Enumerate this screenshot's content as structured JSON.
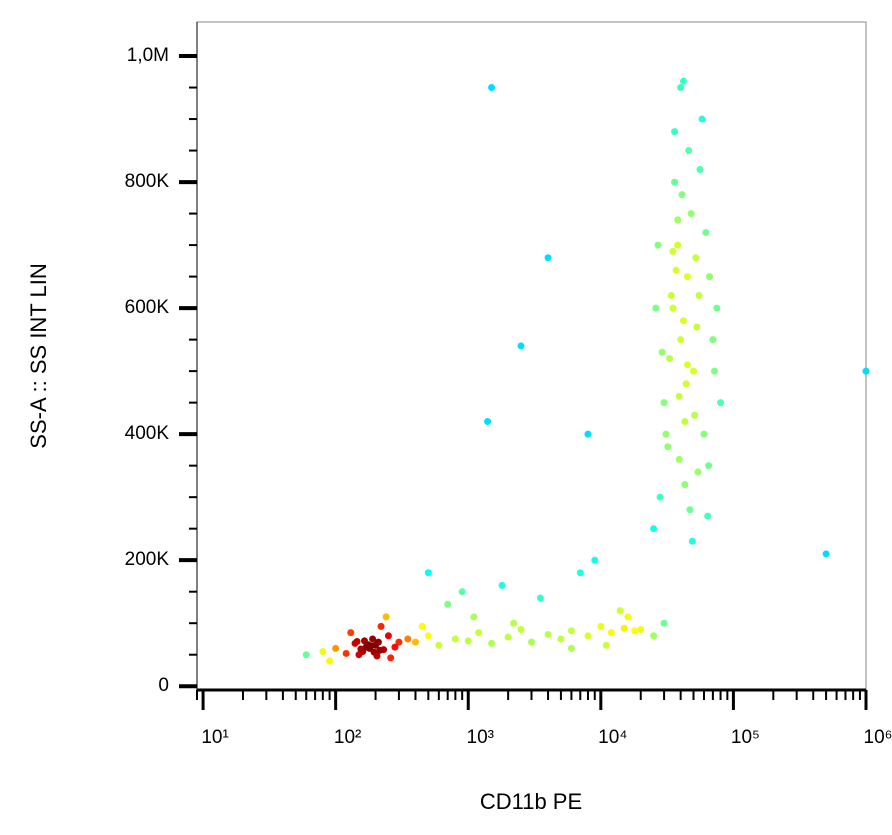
{
  "chart_data": {
    "type": "scatter",
    "x_label": "CD11b PE",
    "y_label": "SS-A :: SS INT LIN",
    "x_log": true,
    "xlim": [
      9,
      1000000
    ],
    "xticks": [
      {
        "value": 10,
        "label": "10¹"
      },
      {
        "value": 100,
        "label": "10²"
      },
      {
        "value": 1000,
        "label": "10³"
      },
      {
        "value": 10000,
        "label": "10⁴"
      },
      {
        "value": 100000,
        "label": "10⁵"
      },
      {
        "value": 1000000,
        "label": "10⁶"
      }
    ],
    "ylim": [
      -6000,
      1054000
    ],
    "yticks": [
      0,
      {
        "value": 200000,
        "label": "200K"
      },
      {
        "value": 400000,
        "label": "400K"
      },
      {
        "value": 600000,
        "label": "600K"
      },
      {
        "value": 800000,
        "label": "800K"
      },
      {
        "value": 1000000,
        "label": "1,0M"
      }
    ],
    "x": [
      180,
      160,
      200,
      210,
      150,
      190,
      170,
      230,
      140,
      250,
      120,
      260,
      100,
      300,
      90,
      220,
      175,
      195,
      165,
      205,
      130,
      280,
      80,
      350,
      60,
      240,
      185,
      155,
      215,
      145,
      400,
      500,
      600,
      800,
      1000,
      1200,
      1500,
      2000,
      2500,
      3000,
      4000,
      5000,
      6000,
      8000,
      10000,
      12000,
      15000,
      18000,
      20000,
      25000,
      700,
      900,
      1100,
      1800,
      3500,
      7000,
      9000,
      14000,
      500,
      2200,
      6000,
      11000,
      16000,
      30000,
      450,
      40000,
      35000,
      45000,
      50000,
      30000,
      38000,
      42000,
      55000,
      60000,
      33000,
      48000,
      65000,
      28000,
      36000,
      44000,
      52000,
      70000,
      32000,
      46000,
      58000,
      25000,
      40000,
      37000,
      43000,
      62000,
      75000,
      29000,
      39000,
      47000,
      54000,
      41000,
      34000,
      80000,
      27000,
      53000,
      49000,
      36000,
      45000,
      66000,
      31000,
      43000,
      38000,
      56000,
      72000,
      26000,
      42000,
      51000,
      39000,
      64000,
      35000,
      1500,
      4000,
      2500,
      1400,
      8000,
      500000,
      1000000
    ],
    "y": [
      60000,
      55000,
      65000,
      70000,
      50000,
      75000,
      62000,
      58000,
      68000,
      80000,
      52000,
      45000,
      60000,
      70000,
      40000,
      95000,
      66000,
      54000,
      72000,
      48000,
      85000,
      62000,
      55000,
      75000,
      50000,
      110000,
      64000,
      59000,
      57000,
      71000,
      70000,
      80000,
      65000,
      75000,
      72000,
      85000,
      68000,
      78000,
      90000,
      70000,
      82000,
      75000,
      88000,
      80000,
      95000,
      85000,
      92000,
      88000,
      90000,
      80000,
      130000,
      150000,
      110000,
      160000,
      140000,
      180000,
      200000,
      120000,
      180000,
      100000,
      60000,
      65000,
      110000,
      100000,
      95000,
      550000,
      600000,
      650000,
      500000,
      450000,
      700000,
      580000,
      620000,
      400000,
      520000,
      750000,
      350000,
      300000,
      800000,
      480000,
      680000,
      550000,
      380000,
      850000,
      900000,
      250000,
      950000,
      660000,
      420000,
      720000,
      600000,
      530000,
      460000,
      280000,
      340000,
      780000,
      620000,
      450000,
      700000,
      570000,
      230000,
      880000,
      510000,
      650000,
      400000,
      320000,
      740000,
      820000,
      500000,
      600000,
      960000,
      430000,
      360000,
      270000,
      690000,
      950000,
      680000,
      540000,
      420000,
      400000,
      210000,
      500000
    ]
  }
}
